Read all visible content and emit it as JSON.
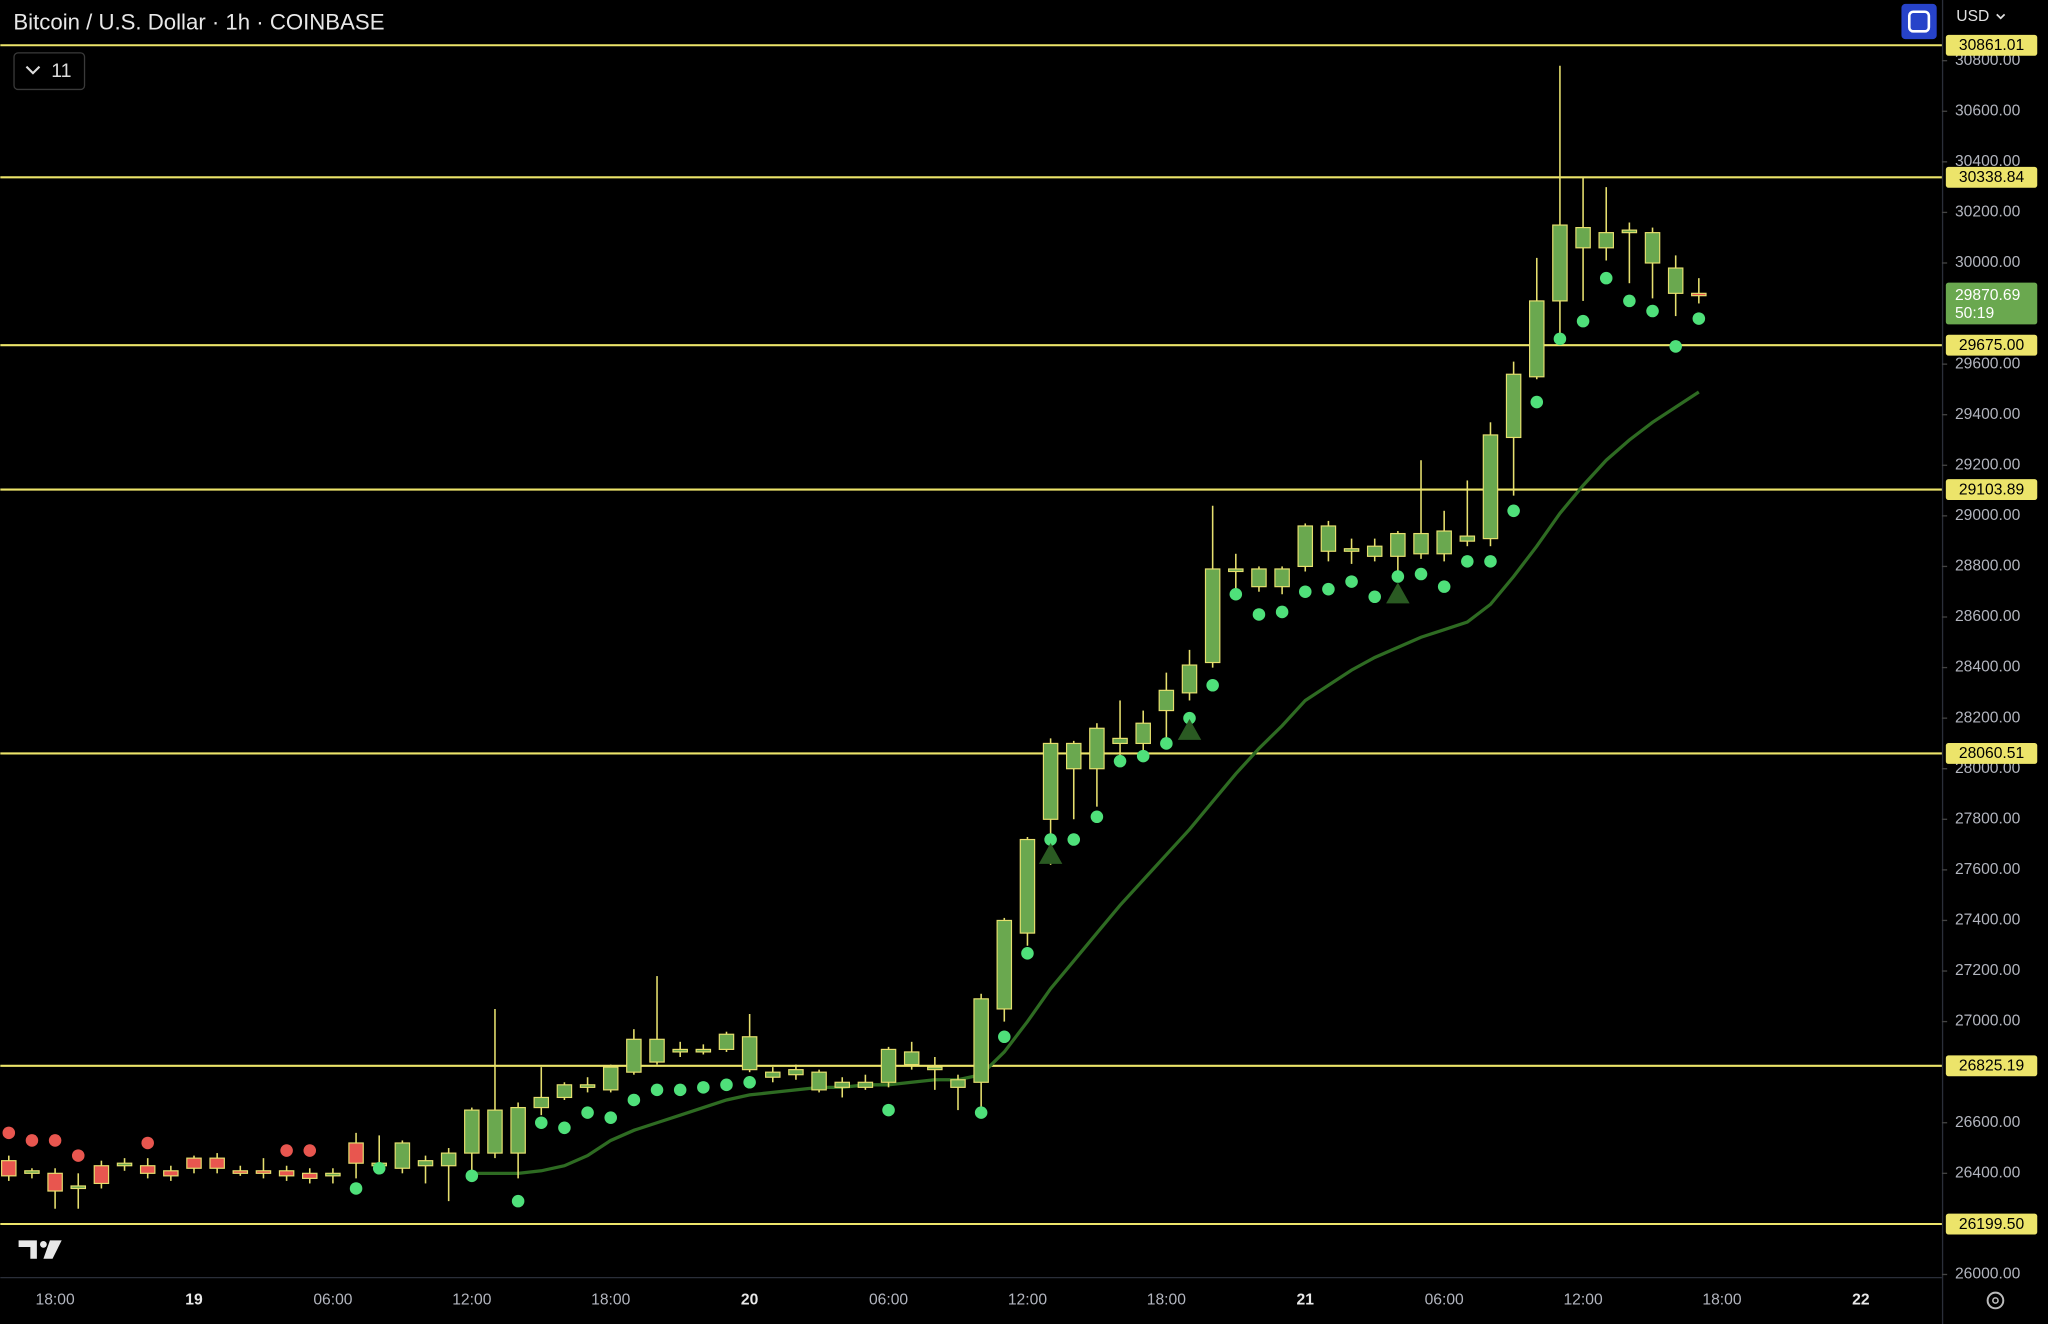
{
  "chart_data": {
    "type": "candlestick",
    "title": "Bitcoin / U.S. Dollar · 1h · COINBASE",
    "indicator_count": "11",
    "currency": "USD",
    "countdown": "50:19",
    "up_color": "#6aa84f",
    "down_color": "#e8564f",
    "wick_color": "#e6df6e",
    "sar_up_color": "#4fe07a",
    "sar_down_color": "#e8564f",
    "ma_color": "#2e6b22",
    "signal_color": "#2a5a22",
    "line_color": "#ece46a",
    "categories": [
      null,
      null,
      "18:00",
      null,
      null,
      null,
      null,
      null,
      "19",
      null,
      null,
      null,
      null,
      null,
      "06:00",
      null,
      null,
      null,
      null,
      null,
      "12:00",
      null,
      null,
      null,
      null,
      null,
      "18:00",
      null,
      null,
      null,
      null,
      null,
      "20",
      null,
      null,
      null,
      null,
      null,
      "06:00",
      null,
      null,
      null,
      null,
      null,
      "12:00",
      null,
      null,
      null,
      null,
      null,
      "18:00",
      null,
      null,
      null,
      null,
      null,
      "21",
      null,
      null,
      null,
      null,
      null,
      "06:00",
      null,
      null,
      null,
      null,
      null,
      "12:00",
      null,
      null,
      null,
      null,
      null,
      "18:00",
      null,
      null,
      null,
      null,
      null,
      "22",
      null,
      null,
      null
    ],
    "open": [
      26450,
      26400,
      26400,
      26340,
      26430,
      26430,
      26430,
      26410,
      26460,
      26460,
      26410,
      26410,
      26410,
      26400,
      26390,
      26520,
      26430,
      26420,
      26430,
      26430,
      26480,
      26480,
      26480,
      26660,
      26700,
      26740,
      26730,
      26800,
      26840,
      26880,
      26880,
      26890,
      26810,
      26780,
      26790,
      26730,
      26740,
      26740,
      26760,
      26830,
      26810,
      26740,
      26760,
      27050,
      27350,
      27800,
      28000,
      28000,
      28100,
      28100,
      28230,
      28300,
      28420,
      28780,
      28720,
      28720,
      28800,
      28860,
      28860,
      28840,
      28840,
      28850,
      28850,
      28900,
      28910,
      29310,
      29550,
      29850,
      30060,
      30060,
      30120,
      30000,
      29880,
      29880,
      null,
      null,
      null,
      null,
      null,
      null,
      null,
      null,
      null,
      null
    ],
    "high": [
      26470,
      26420,
      26420,
      26400,
      26450,
      26460,
      26460,
      26430,
      26470,
      26480,
      26430,
      26460,
      26430,
      26420,
      26420,
      26560,
      26550,
      26530,
      26470,
      26500,
      26660,
      27050,
      26680,
      26820,
      26760,
      26780,
      26830,
      26970,
      27180,
      26920,
      26910,
      26960,
      27030,
      26820,
      26830,
      26810,
      26780,
      26790,
      26900,
      26920,
      26860,
      26790,
      27110,
      27410,
      27730,
      28120,
      28110,
      28180,
      28270,
      28230,
      28380,
      28470,
      29040,
      28850,
      28800,
      28800,
      28970,
      28980,
      28910,
      28910,
      28940,
      29220,
      29020,
      29140,
      29370,
      29610,
      30020,
      30780,
      30340,
      30300,
      30160,
      30140,
      30030,
      29940,
      null,
      null,
      null,
      null,
      null,
      null,
      null,
      null,
      null,
      null
    ],
    "low": [
      26370,
      26380,
      26260,
      26260,
      26340,
      26410,
      26380,
      26370,
      26400,
      26400,
      26390,
      26380,
      26370,
      26360,
      26360,
      26380,
      26400,
      26400,
      26360,
      26290,
      26410,
      26460,
      26380,
      26630,
      26690,
      26720,
      26720,
      26790,
      26830,
      26860,
      26870,
      26880,
      26800,
      26760,
      26770,
      26720,
      26700,
      26730,
      26740,
      26810,
      26730,
      26650,
      26660,
      27000,
      27300,
      27620,
      27800,
      27850,
      28050,
      28060,
      28120,
      28270,
      28400,
      28700,
      28700,
      28690,
      28780,
      28820,
      28810,
      28820,
      28780,
      28830,
      28820,
      28880,
      28880,
      29080,
      29540,
      29700,
      29850,
      30010,
      29920,
      29860,
      29790,
      29840,
      null,
      null,
      null,
      null,
      null,
      null,
      null,
      null,
      null,
      null
    ],
    "close": [
      26390,
      26410,
      26330,
      26350,
      26360,
      26440,
      26400,
      26390,
      26420,
      26420,
      26400,
      26400,
      26390,
      26380,
      26400,
      26440,
      26440,
      26520,
      26450,
      26480,
      26650,
      26650,
      26660,
      26700,
      26750,
      26750,
      26820,
      26930,
      26930,
      26890,
      26890,
      26950,
      26940,
      26800,
      26810,
      26800,
      26760,
      26760,
      26890,
      26880,
      26820,
      26770,
      27090,
      27400,
      27720,
      28100,
      28100,
      28160,
      28120,
      28180,
      28310,
      28410,
      28790,
      28790,
      28790,
      28790,
      28960,
      28960,
      28870,
      28880,
      28930,
      28930,
      28940,
      28920,
      29320,
      29560,
      29850,
      30150,
      30140,
      30120,
      30130,
      30120,
      29980,
      29870.69,
      null,
      null,
      null,
      null,
      null,
      null,
      null,
      null,
      null,
      null
    ],
    "sar": [
      26560,
      26530,
      26530,
      26470,
      null,
      null,
      26520,
      null,
      null,
      null,
      null,
      null,
      26490,
      26490,
      null,
      26340,
      26420,
      null,
      null,
      null,
      26390,
      null,
      26290,
      26600,
      26580,
      26640,
      26620,
      26690,
      26730,
      26730,
      26740,
      26750,
      26760,
      null,
      null,
      null,
      null,
      null,
      26650,
      null,
      null,
      null,
      26640,
      26940,
      27270,
      27720,
      27720,
      27810,
      28030,
      28050,
      28100,
      28200,
      28330,
      28690,
      28610,
      28620,
      28700,
      28710,
      28740,
      28680,
      28760,
      28770,
      28720,
      28820,
      28820,
      29020,
      29450,
      29700,
      29770,
      29940,
      29850,
      29810,
      29670,
      29780,
      null,
      null,
      null,
      null,
      null,
      null,
      null,
      null,
      null,
      null
    ],
    "ma": [
      null,
      null,
      null,
      null,
      null,
      null,
      null,
      null,
      null,
      null,
      null,
      null,
      null,
      null,
      null,
      null,
      null,
      null,
      null,
      null,
      26400,
      26400,
      26400,
      26410,
      26430,
      26470,
      26530,
      26570,
      26600,
      26630,
      26660,
      26690,
      26710,
      26720,
      26730,
      26740,
      26740,
      26750,
      26750,
      26760,
      26770,
      26770,
      26790,
      26880,
      27000,
      27130,
      27240,
      27350,
      27460,
      27560,
      27660,
      27760,
      27870,
      27980,
      28080,
      28170,
      28270,
      28330,
      28390,
      28440,
      28480,
      28520,
      28550,
      28580,
      28650,
      28760,
      28880,
      29010,
      29120,
      29220,
      29300,
      29370,
      29430,
      29490,
      null,
      null,
      null,
      null,
      null,
      null,
      null,
      null,
      null,
      null
    ],
    "signals": [
      null,
      null,
      null,
      null,
      null,
      null,
      null,
      null,
      null,
      null,
      null,
      null,
      null,
      null,
      null,
      null,
      null,
      null,
      null,
      null,
      null,
      null,
      null,
      null,
      null,
      null,
      null,
      null,
      null,
      null,
      null,
      null,
      null,
      null,
      null,
      null,
      null,
      null,
      null,
      null,
      null,
      null,
      null,
      null,
      null,
      27660,
      null,
      null,
      null,
      null,
      null,
      28150,
      null,
      null,
      null,
      null,
      null,
      null,
      null,
      null,
      28690,
      null,
      null,
      null,
      null,
      null,
      null,
      null,
      null,
      null,
      null,
      null,
      null,
      null,
      null,
      null,
      null,
      null,
      null,
      null,
      null,
      null,
      null,
      null
    ],
    "price_lines": [
      30861.01,
      30338.84,
      {
        "value": 29675.0,
        "label": "29675.00"
      },
      29103.89,
      28060.51,
      26825.19,
      {
        "value": 26199.5,
        "label": "26199.50"
      }
    ],
    "ylim": [
      25990,
      31040
    ],
    "yticks": [
      {
        "value": 26000,
        "label": "26000.00"
      },
      {
        "value": 26400,
        "label": "26400.00"
      },
      {
        "value": 26600,
        "label": "26600.00"
      },
      {
        "value": 27000,
        "label": "27000.00"
      },
      {
        "value": 27200,
        "label": "27200.00"
      },
      {
        "value": 27400,
        "label": "27400.00"
      },
      {
        "value": 27600,
        "label": "27600.00"
      },
      {
        "value": 27800,
        "label": "27800.00"
      },
      {
        "value": 28000,
        "label": "28000.00"
      },
      {
        "value": 28200,
        "label": "28200.00"
      },
      {
        "value": 28400,
        "label": "28400.00"
      },
      {
        "value": 28600,
        "label": "28600.00"
      },
      {
        "value": 28800,
        "label": "28800.00"
      },
      {
        "value": 29000,
        "label": "29000.00"
      },
      {
        "value": 29200,
        "label": "29200.00"
      },
      {
        "value": 29400,
        "label": "29400.00"
      },
      {
        "value": 29600,
        "label": "29600.00"
      },
      {
        "value": 30000,
        "label": "30000.00"
      },
      {
        "value": 30200,
        "label": "30200.00"
      },
      {
        "value": 30400,
        "label": "30400.00"
      },
      {
        "value": 30600,
        "label": "30600.00"
      },
      {
        "value": 30800,
        "label": "30800.00"
      }
    ]
  }
}
